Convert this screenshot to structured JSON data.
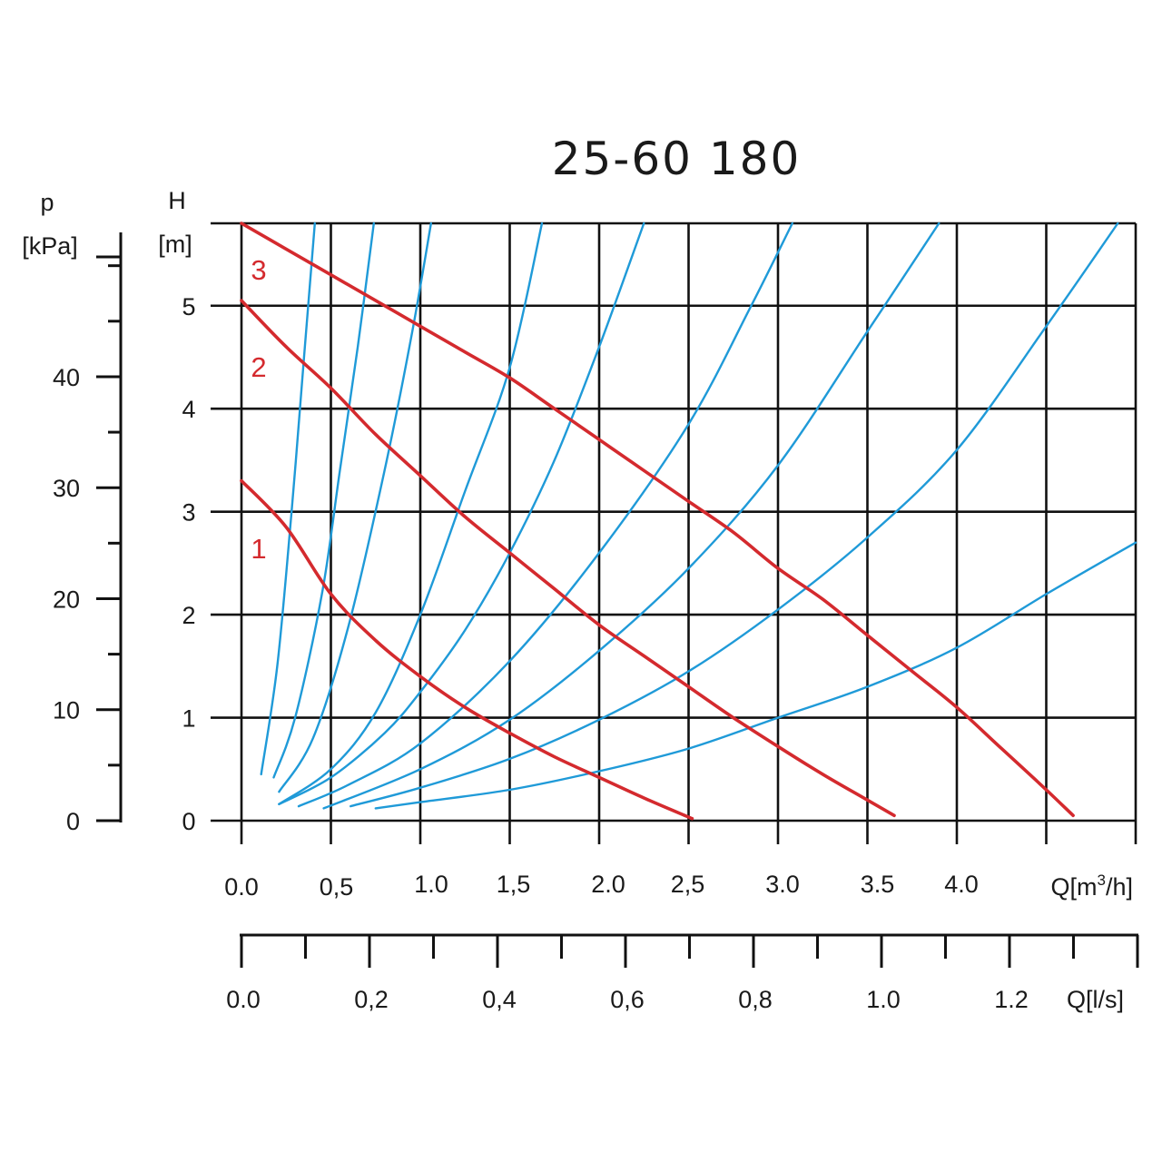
{
  "chart_data": {
    "type": "line",
    "title": "25-60 180",
    "colors": {
      "pump": "#d42a2e",
      "system": "#1f9ad8",
      "grid": "#111111"
    },
    "axes": {
      "x_flow_m3h": {
        "label": "Q[m³/h]",
        "label_main": "Q[m",
        "label_sup": "3",
        "label_end": "/h]",
        "range": [
          0,
          5.0
        ],
        "ticks": [
          0.0,
          0.5,
          1.0,
          1.5,
          2.0,
          2.5,
          3.0,
          3.5,
          4.0
        ],
        "tick_labels": [
          "0.0",
          "0,5",
          "1.0",
          "1,5",
          "2.0",
          "2,5",
          "3.0",
          "3.5",
          "4.0"
        ]
      },
      "x_flow_ls": {
        "label": "Q[l/s]",
        "range": [
          0,
          1.4
        ],
        "ticks": [
          0.0,
          0.2,
          0.4,
          0.6,
          0.8,
          1.0,
          1.2
        ],
        "tick_labels": [
          "0.0",
          "0,2",
          "0,4",
          "0,6",
          "0,8",
          "1.0",
          "1.2"
        ],
        "minor_step": 0.1
      },
      "y_head_m": {
        "label_line1": "H",
        "label_line2": "[m]",
        "range": [
          0,
          5.8
        ],
        "ticks": [
          0,
          1,
          2,
          3,
          4,
          5
        ],
        "tick_labels": [
          "0",
          "1",
          "2",
          "3",
          "4",
          "5"
        ]
      },
      "y_pressure_kpa": {
        "label_line1": "p",
        "label_line2": "[kPa]",
        "range": [
          0,
          53
        ],
        "ticks": [
          0,
          10,
          20,
          30,
          40
        ],
        "tick_labels": [
          "0",
          "10",
          "20",
          "30",
          "40"
        ],
        "minor_ticks": [
          5,
          15,
          25,
          35,
          45,
          50
        ]
      }
    },
    "grid": true,
    "series": [
      {
        "name": "1",
        "kind": "pump",
        "points": [
          [
            0.0,
            3.3
          ],
          [
            0.25,
            2.85
          ],
          [
            0.5,
            2.2
          ],
          [
            0.75,
            1.75
          ],
          [
            1.0,
            1.4
          ],
          [
            1.25,
            1.1
          ],
          [
            1.5,
            0.85
          ],
          [
            1.75,
            0.62
          ],
          [
            2.0,
            0.42
          ],
          [
            2.25,
            0.22
          ],
          [
            2.52,
            0.02
          ]
        ]
      },
      {
        "name": "2",
        "kind": "pump",
        "points": [
          [
            0.0,
            5.05
          ],
          [
            0.25,
            4.6
          ],
          [
            0.5,
            4.2
          ],
          [
            0.75,
            3.75
          ],
          [
            1.0,
            3.35
          ],
          [
            1.25,
            2.95
          ],
          [
            1.5,
            2.6
          ],
          [
            1.75,
            2.25
          ],
          [
            2.0,
            1.9
          ],
          [
            2.25,
            1.6
          ],
          [
            2.5,
            1.3
          ],
          [
            2.75,
            1.0
          ],
          [
            3.0,
            0.72
          ],
          [
            3.25,
            0.45
          ],
          [
            3.5,
            0.2
          ],
          [
            3.65,
            0.05
          ]
        ]
      },
      {
        "name": "3",
        "kind": "pump",
        "points": [
          [
            0.0,
            5.8
          ],
          [
            0.25,
            5.55
          ],
          [
            0.5,
            5.3
          ],
          [
            0.75,
            5.05
          ],
          [
            1.0,
            4.8
          ],
          [
            1.25,
            4.55
          ],
          [
            1.5,
            4.3
          ],
          [
            1.75,
            4.0
          ],
          [
            2.0,
            3.7
          ],
          [
            2.25,
            3.4
          ],
          [
            2.5,
            3.1
          ],
          [
            2.75,
            2.8
          ],
          [
            3.0,
            2.45
          ],
          [
            3.25,
            2.15
          ],
          [
            3.5,
            1.8
          ],
          [
            3.75,
            1.45
          ],
          [
            4.0,
            1.1
          ],
          [
            4.25,
            0.7
          ],
          [
            4.5,
            0.3
          ],
          [
            4.65,
            0.05
          ]
        ]
      }
    ],
    "system_curves": [
      {
        "points": [
          [
            0.11,
            0.45
          ],
          [
            0.2,
            1.5
          ],
          [
            0.28,
            3.0
          ],
          [
            0.35,
            4.5
          ],
          [
            0.41,
            5.8
          ]
        ]
      },
      {
        "points": [
          [
            0.18,
            0.42
          ],
          [
            0.3,
            1.0
          ],
          [
            0.45,
            2.2
          ],
          [
            0.55,
            3.4
          ],
          [
            0.65,
            4.6
          ],
          [
            0.74,
            5.8
          ]
        ]
      },
      {
        "points": [
          [
            0.21,
            0.28
          ],
          [
            0.4,
            0.8
          ],
          [
            0.6,
            1.9
          ],
          [
            0.8,
            3.4
          ],
          [
            0.95,
            4.7
          ],
          [
            1.06,
            5.8
          ]
        ]
      },
      {
        "points": [
          [
            0.21,
            0.16
          ],
          [
            0.5,
            0.5
          ],
          [
            0.75,
            1.05
          ],
          [
            1.0,
            2.0
          ],
          [
            1.25,
            3.2
          ],
          [
            1.5,
            4.4
          ],
          [
            1.68,
            5.8
          ]
        ]
      },
      {
        "points": [
          [
            0.21,
            0.16
          ],
          [
            0.5,
            0.42
          ],
          [
            0.8,
            0.85
          ],
          [
            1.0,
            1.25
          ],
          [
            1.25,
            1.85
          ],
          [
            1.5,
            2.6
          ],
          [
            1.75,
            3.5
          ],
          [
            2.0,
            4.6
          ],
          [
            2.25,
            5.8
          ]
        ]
      },
      {
        "points": [
          [
            0.32,
            0.14
          ],
          [
            0.6,
            0.35
          ],
          [
            1.0,
            0.75
          ],
          [
            1.5,
            1.55
          ],
          [
            2.0,
            2.6
          ],
          [
            2.5,
            3.85
          ],
          [
            2.85,
            5.0
          ],
          [
            3.08,
            5.8
          ]
        ]
      },
      {
        "points": [
          [
            0.46,
            0.12
          ],
          [
            1.0,
            0.5
          ],
          [
            1.5,
            0.98
          ],
          [
            2.0,
            1.65
          ],
          [
            2.5,
            2.45
          ],
          [
            3.0,
            3.45
          ],
          [
            3.5,
            4.75
          ],
          [
            3.9,
            5.8
          ]
        ]
      },
      {
        "points": [
          [
            0.61,
            0.14
          ],
          [
            1.0,
            0.32
          ],
          [
            1.5,
            0.6
          ],
          [
            2.0,
            0.98
          ],
          [
            2.5,
            1.45
          ],
          [
            3.0,
            2.05
          ],
          [
            3.5,
            2.75
          ],
          [
            4.0,
            3.6
          ],
          [
            4.5,
            4.8
          ],
          [
            4.9,
            5.8
          ]
        ]
      },
      {
        "points": [
          [
            0.75,
            0.12
          ],
          [
            1.0,
            0.18
          ],
          [
            1.5,
            0.3
          ],
          [
            2.0,
            0.48
          ],
          [
            2.5,
            0.7
          ],
          [
            3.0,
            1.0
          ],
          [
            3.5,
            1.3
          ],
          [
            4.0,
            1.68
          ],
          [
            4.5,
            2.2
          ],
          [
            5.0,
            2.7
          ]
        ]
      }
    ]
  }
}
